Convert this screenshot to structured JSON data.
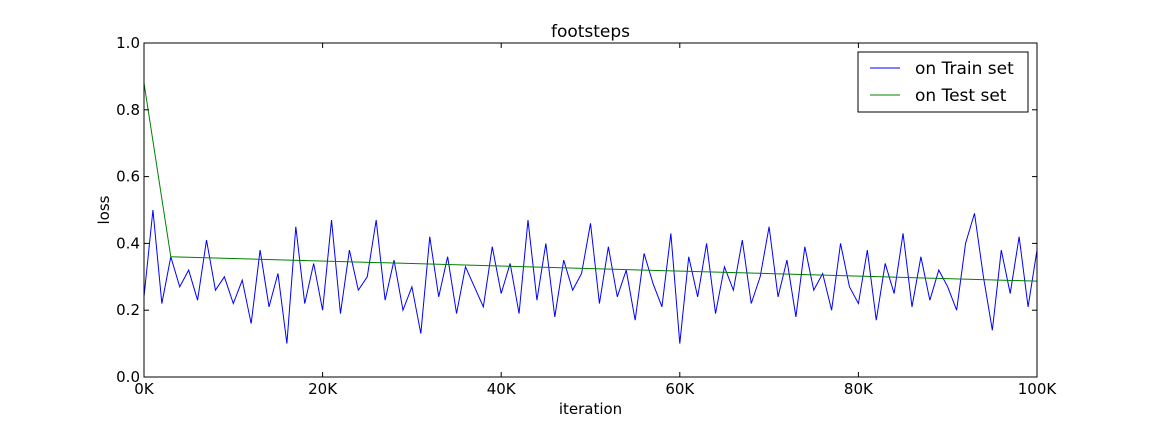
{
  "chart_data": {
    "type": "line",
    "title": "footsteps",
    "xlabel": "iteration",
    "ylabel": "loss",
    "xlim": [
      0,
      100000
    ],
    "ylim": [
      0,
      1.0
    ],
    "x_ticks": [
      0,
      20000,
      40000,
      60000,
      80000,
      100000
    ],
    "x_tick_labels": [
      "0K",
      "20K",
      "40K",
      "60K",
      "80K",
      "100K"
    ],
    "y_ticks": [
      0.0,
      0.2,
      0.4,
      0.6,
      0.8,
      1.0
    ],
    "y_tick_labels": [
      "0.0",
      "0.2",
      "0.4",
      "0.6",
      "0.8",
      "1.0"
    ],
    "grid": false,
    "legend_position": "top-right",
    "series": [
      {
        "name": "on Train set",
        "color": "#0000ff",
        "x": [
          0,
          1000,
          2000,
          3000,
          4000,
          5000,
          6000,
          7000,
          8000,
          9000,
          10000,
          11000,
          12000,
          13000,
          14000,
          15000,
          16000,
          17000,
          18000,
          19000,
          20000,
          21000,
          22000,
          23000,
          24000,
          25000,
          26000,
          27000,
          28000,
          29000,
          30000,
          31000,
          32000,
          33000,
          34000,
          35000,
          36000,
          37000,
          38000,
          39000,
          40000,
          41000,
          42000,
          43000,
          44000,
          45000,
          46000,
          47000,
          48000,
          49000,
          50000,
          51000,
          52000,
          53000,
          54000,
          55000,
          56000,
          57000,
          58000,
          59000,
          60000,
          61000,
          62000,
          63000,
          64000,
          65000,
          66000,
          67000,
          68000,
          69000,
          70000,
          71000,
          72000,
          73000,
          74000,
          75000,
          76000,
          77000,
          78000,
          79000,
          80000,
          81000,
          82000,
          83000,
          84000,
          85000,
          86000,
          87000,
          88000,
          89000,
          90000,
          91000,
          92000,
          93000,
          94000,
          95000,
          96000,
          97000,
          98000,
          99000,
          100000
        ],
        "y": [
          0.24,
          0.5,
          0.22,
          0.36,
          0.27,
          0.32,
          0.23,
          0.41,
          0.26,
          0.3,
          0.22,
          0.29,
          0.16,
          0.38,
          0.21,
          0.31,
          0.1,
          0.45,
          0.22,
          0.34,
          0.2,
          0.47,
          0.19,
          0.38,
          0.26,
          0.3,
          0.47,
          0.23,
          0.35,
          0.2,
          0.27,
          0.13,
          0.42,
          0.24,
          0.36,
          0.19,
          0.33,
          0.27,
          0.21,
          0.39,
          0.25,
          0.34,
          0.19,
          0.47,
          0.23,
          0.4,
          0.18,
          0.35,
          0.26,
          0.31,
          0.46,
          0.22,
          0.39,
          0.24,
          0.32,
          0.17,
          0.37,
          0.28,
          0.21,
          0.43,
          0.1,
          0.36,
          0.24,
          0.4,
          0.19,
          0.33,
          0.26,
          0.41,
          0.22,
          0.3,
          0.45,
          0.24,
          0.35,
          0.18,
          0.39,
          0.26,
          0.31,
          0.2,
          0.4,
          0.27,
          0.22,
          0.38,
          0.17,
          0.34,
          0.25,
          0.43,
          0.21,
          0.36,
          0.23,
          0.32,
          0.27,
          0.2,
          0.4,
          0.49,
          0.3,
          0.14,
          0.38,
          0.25,
          0.42,
          0.21,
          0.38
        ]
      },
      {
        "name": "on Test set",
        "color": "#008000",
        "x": [
          0,
          3000,
          100000
        ],
        "y": [
          0.88,
          0.36,
          0.287
        ]
      }
    ]
  }
}
